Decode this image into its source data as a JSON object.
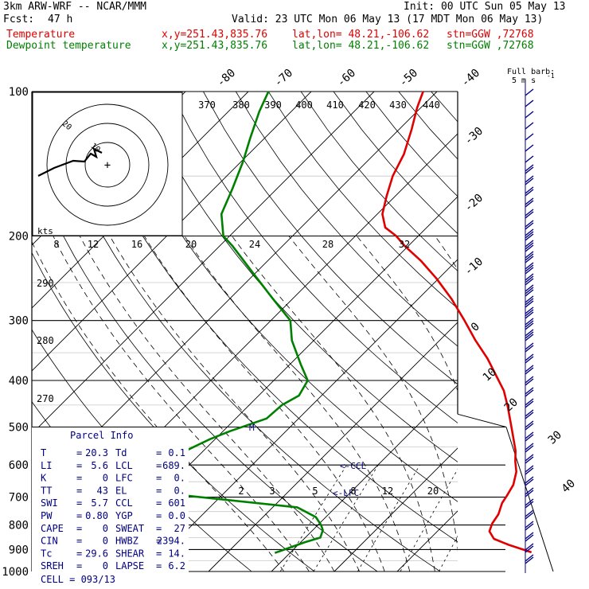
{
  "header": {
    "model": "3km ARW-WRF -- NCAR/MMM",
    "init": "Init: 00 UTC Sun 05 May 13",
    "fcst_label": "Fcst:",
    "fcst_value": "47 h",
    "valid": "Valid: 23 UTC Mon 06 May 13 (17 MDT Mon 06 May 13)",
    "temp_label": "Temperature",
    "dew_label": "Dewpoint temperature",
    "loc_xy": "x,y=251.43,835.76",
    "loc_latlon": "lat,lon= 48.21,-106.62",
    "loc_stn": "stn=GGW ,72768"
  },
  "barb_key": {
    "label": "Full barb:",
    "value": "5 m s",
    "sup": "-1"
  },
  "hodo": {
    "label": "kts",
    "ring_labels": [
      "20",
      "10"
    ],
    "origin_mark": "+"
  },
  "colors": {
    "temperature": "#e00000",
    "dewpoint": "#008000",
    "grid": "#000000",
    "wind": "#000080"
  },
  "chart_data": {
    "type": "line",
    "chart_kind": "skew-T log-p",
    "y_scale": "log",
    "ylim_hpa": [
      1000,
      100
    ],
    "pressure_ticks": [
      "100",
      "200",
      "300",
      "400",
      "500",
      "600",
      "700",
      "800",
      "900",
      "1000"
    ],
    "isotherm_labels_top": [
      "-80",
      "-70",
      "-60",
      "-50",
      "-40"
    ],
    "isotherm_labels_right": [
      "-30",
      "-20",
      "-10",
      "0",
      "10",
      "20",
      "30",
      "40"
    ],
    "theta_labels": [
      "370",
      "380",
      "390",
      "400",
      "410",
      "420",
      "430",
      "440"
    ],
    "hodo_axis_labels": [
      "8",
      "12",
      "16",
      "20",
      "24",
      "28",
      "32"
    ],
    "left_theta_labels": [
      "290",
      "280",
      "270"
    ],
    "mixing_ratio_labels": [
      "2",
      "3",
      "5",
      "8",
      "12",
      "20"
    ],
    "ccl_label": "<-CCL",
    "lfc_label": "<-LFC",
    "level_marker": "M",
    "series": [
      {
        "name": "Temperature",
        "points": [
          [
            912,
            28.3
          ],
          [
            880,
            23.5
          ],
          [
            855,
            20.2
          ],
          [
            825,
            18.3
          ],
          [
            795,
            17.5
          ],
          [
            760,
            17.0
          ],
          [
            720,
            15.8
          ],
          [
            695,
            15.4
          ],
          [
            660,
            14.7
          ],
          [
            620,
            13.1
          ],
          [
            590,
            11.3
          ],
          [
            560,
            9.6
          ],
          [
            525,
            7.1
          ],
          [
            490,
            4.4
          ],
          [
            455,
            1.5
          ],
          [
            420,
            -1.8
          ],
          [
            390,
            -5.5
          ],
          [
            360,
            -9.5
          ],
          [
            330,
            -14.3
          ],
          [
            300,
            -19.2
          ],
          [
            270,
            -24.8
          ],
          [
            245,
            -30.4
          ],
          [
            225,
            -35.7
          ],
          [
            210,
            -40.5
          ],
          [
            200,
            -43.5
          ],
          [
            192,
            -46.6
          ],
          [
            180,
            -49.2
          ],
          [
            165,
            -51.4
          ],
          [
            150,
            -53.6
          ],
          [
            135,
            -55.3
          ],
          [
            120,
            -58.0
          ],
          [
            108,
            -60.6
          ],
          [
            100,
            -62.2
          ]
        ]
      },
      {
        "name": "Dewpoint temperature",
        "points": [
          [
            915,
            -12.4
          ],
          [
            900,
            -11.4
          ],
          [
            870,
            -9.4
          ],
          [
            850,
            -7.6
          ],
          [
            820,
            -8.4
          ],
          [
            800,
            -9.5
          ],
          [
            770,
            -11.6
          ],
          [
            735,
            -16.1
          ],
          [
            690,
            -38.1
          ],
          [
            660,
            -55.7
          ],
          [
            640,
            -59.5
          ],
          [
            620,
            -56.3
          ],
          [
            600,
            -47.7
          ],
          [
            580,
            -44.4
          ],
          [
            560,
            -42.8
          ],
          [
            530,
            -40.8
          ],
          [
            510,
            -38.9
          ],
          [
            480,
            -35.1
          ],
          [
            450,
            -34.8
          ],
          [
            430,
            -33.6
          ],
          [
            400,
            -34.6
          ],
          [
            370,
            -38.3
          ],
          [
            330,
            -43.5
          ],
          [
            300,
            -46.9
          ],
          [
            270,
            -53.2
          ],
          [
            240,
            -60.1
          ],
          [
            210,
            -67.9
          ],
          [
            200,
            -71.0
          ],
          [
            180,
            -74.8
          ],
          [
            160,
            -77.0
          ],
          [
            140,
            -79.7
          ],
          [
            125,
            -82.3
          ],
          [
            110,
            -85.1
          ],
          [
            100,
            -86.8
          ]
        ]
      }
    ]
  },
  "parcel": {
    "title": "Parcel Info",
    "rows": [
      {
        "l1": "T",
        "v1": "20.3",
        "l2": "Td",
        "v2": "0.1"
      },
      {
        "l1": "LI",
        "v1": "5.6",
        "l2": "LCL",
        "v2": "689."
      },
      {
        "l1": "K",
        "v1": "0",
        "l2": "LFC",
        "v2": "0."
      },
      {
        "l1": "TT",
        "v1": "43",
        "l2": "EL",
        "v2": "0."
      },
      {
        "l1": "SWI",
        "v1": "5.7",
        "l2": "CCL",
        "v2": "601"
      },
      {
        "l1": "PW",
        "v1": "0.80",
        "l2": "YGP",
        "v2": "0.0"
      },
      {
        "l1": "CAPE",
        "v1": "0",
        "l2": "SWEAT",
        "v2": "27"
      },
      {
        "l1": "CIN",
        "v1": "0",
        "l2": "HWBZ",
        "v2": "2394."
      },
      {
        "l1": "Tc",
        "v1": "29.6",
        "l2": "SHEAR",
        "v2": "14."
      },
      {
        "l1": "SREH",
        "v1": "0",
        "l2": "LAPSE",
        "v2": "6.2"
      }
    ],
    "cell": "CELL = 093/13"
  }
}
